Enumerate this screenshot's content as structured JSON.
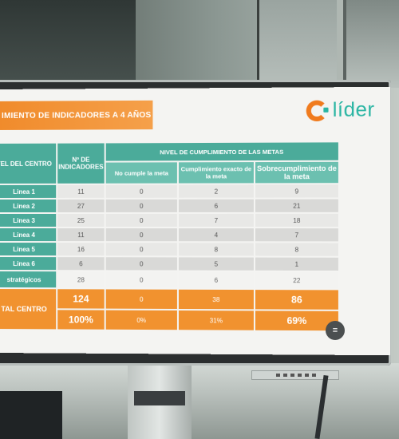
{
  "title": "IMIENTO DE INDICADORES A 4 AÑOS",
  "logo_text": "líder",
  "headers": {
    "nivel_centro": "VEL DEL CENTRO",
    "num_indicadores": "Nº DE INDICADORES",
    "nivel_cumplimiento": "NIVEL DE CUMPLIMIENTO DE LAS METAS",
    "no_cumple": "No cumple la meta",
    "exacto": "Cumplimiento exacto de la meta",
    "sobre": "Sobrecumplimiento de la meta"
  },
  "rows": [
    {
      "label": "Linea 1",
      "n": "11",
      "no": "0",
      "exacto": "2",
      "sobre": "9"
    },
    {
      "label": "Linea 2",
      "n": "27",
      "no": "0",
      "exacto": "6",
      "sobre": "21"
    },
    {
      "label": "Linea 3",
      "n": "25",
      "no": "0",
      "exacto": "7",
      "sobre": "18"
    },
    {
      "label": "Linea 4",
      "n": "11",
      "no": "0",
      "exacto": "4",
      "sobre": "7"
    },
    {
      "label": "Linea 5",
      "n": "16",
      "no": "0",
      "exacto": "8",
      "sobre": "8"
    },
    {
      "label": "Linea 6",
      "n": "6",
      "no": "0",
      "exacto": "5",
      "sobre": "1"
    },
    {
      "label": "stratégicos",
      "n": "28",
      "no": "0",
      "exacto": "6",
      "sobre": "22"
    }
  ],
  "total": {
    "label": "TAL CENTRO",
    "n": "124",
    "no": "0",
    "exacto": "38",
    "sobre": "86",
    "n_pct": "100%",
    "no_pct": "0%",
    "exacto_pct": "31%",
    "sobre_pct": "69%"
  },
  "menu_icon": "≡"
}
